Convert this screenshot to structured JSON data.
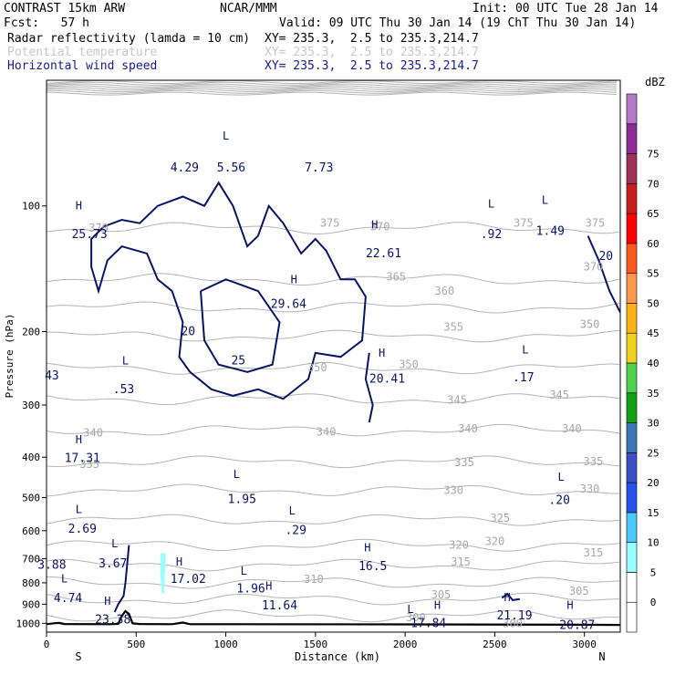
{
  "header": {
    "title": "CONTRAST 15km ARW",
    "source": "NCAR/MMM",
    "init": "Init: 00 UTC Tue 28 Jan 14",
    "fcst": "Fcst:   57 h",
    "valid": "Valid: 09 UTC Thu 30 Jan 14 (19 ChT Thu 30 Jan 14)",
    "fields": [
      {
        "name": "Radar reflectivity (lamda = 10 cm)",
        "xy": "XY= 235.3,  2.5 to 235.3,214.7",
        "style": "black"
      },
      {
        "name": "Potential temperature",
        "xy": "XY= 235.3,  2.5 to 235.3,214.7",
        "style": "gray"
      },
      {
        "name": "Horizontal wind speed",
        "xy": "XY= 235.3,  2.5 to 235.3,214.7",
        "style": "navy"
      }
    ]
  },
  "colorbar": {
    "unit": "dBZ",
    "levels": [
      "-",
      "0",
      "5",
      "10",
      "15",
      "20",
      "25",
      "30",
      "35",
      "40",
      "45",
      "50",
      "55",
      "60",
      "65",
      "70",
      "75"
    ],
    "colors": [
      "#ffffff",
      "#ffffff",
      "#9affff",
      "#4cc8ff",
      "#2850f0",
      "#3c50c8",
      "#3c78b4",
      "#14a014",
      "#50d250",
      "#f0d21e",
      "#ffb414",
      "#ff9650",
      "#ff5a1e",
      "#ff0000",
      "#c81e1e",
      "#a0325a",
      "#8c2d96",
      "#b478c8"
    ]
  },
  "chart_data": {
    "type": "contour",
    "title": "",
    "xlabel": "Distance (km)",
    "ylabel": "Pressure (hPa)",
    "xlim": [
      0,
      3200
    ],
    "ylim": [
      1050,
      50
    ],
    "y_scale": "log",
    "x_ticks": [
      "0",
      "500",
      "1000",
      "1500",
      "2000",
      "2500",
      "3000"
    ],
    "x_tick_values": [
      0,
      500,
      1000,
      1500,
      2000,
      2500,
      3000
    ],
    "y_ticks": [
      "100",
      "200",
      "300",
      "400",
      "500",
      "600",
      "700",
      "800",
      "900",
      "1000"
    ],
    "y_tick_values": [
      100,
      200,
      300,
      400,
      500,
      600,
      700,
      800,
      900,
      1000
    ],
    "endpoint_labels": {
      "left": "S",
      "right": "N"
    },
    "theta_contours": [
      {
        "label": "370",
        "p": 113
      },
      {
        "label": "365",
        "p": 150
      },
      {
        "label": "360",
        "p": 175
      },
      {
        "label": "355",
        "p": 205
      },
      {
        "label": "350",
        "p": 245
      },
      {
        "label": "345",
        "p": 290
      },
      {
        "label": "340",
        "p": 345
      },
      {
        "label": "335",
        "p": 410
      },
      {
        "label": "330",
        "p": 480
      },
      {
        "label": "325",
        "p": 565
      },
      {
        "label": "320",
        "p": 650
      },
      {
        "label": "315",
        "p": 725
      },
      {
        "label": "310",
        "p": 800
      },
      {
        "label": "305",
        "p": 875
      },
      {
        "label": "300",
        "p": 960
      }
    ],
    "theta_labels": [
      {
        "text": "370",
        "x": 290,
        "p": 113
      },
      {
        "text": "375",
        "x": 1580,
        "p": 110
      },
      {
        "text": "370",
        "x": 1860,
        "p": 112
      },
      {
        "text": "375",
        "x": 2660,
        "p": 110
      },
      {
        "text": "375",
        "x": 3060,
        "p": 110
      },
      {
        "text": "370",
        "x": 3050,
        "p": 140
      },
      {
        "text": "365",
        "x": 1950,
        "p": 148
      },
      {
        "text": "360",
        "x": 2220,
        "p": 160
      },
      {
        "text": "355",
        "x": 2270,
        "p": 195
      },
      {
        "text": "350",
        "x": 3030,
        "p": 192
      },
      {
        "text": "350",
        "x": 2020,
        "p": 240
      },
      {
        "text": "350",
        "x": 1510,
        "p": 244
      },
      {
        "text": "345",
        "x": 2860,
        "p": 284
      },
      {
        "text": "345",
        "x": 2290,
        "p": 292
      },
      {
        "text": "340",
        "x": 260,
        "p": 350
      },
      {
        "text": "340",
        "x": 1560,
        "p": 348
      },
      {
        "text": "340",
        "x": 2350,
        "p": 342
      },
      {
        "text": "340",
        "x": 2930,
        "p": 342
      },
      {
        "text": "335",
        "x": 240,
        "p": 416
      },
      {
        "text": "335",
        "x": 2330,
        "p": 412
      },
      {
        "text": "335",
        "x": 3050,
        "p": 410
      },
      {
        "text": "330",
        "x": 2270,
        "p": 480
      },
      {
        "text": "330",
        "x": 3030,
        "p": 477
      },
      {
        "text": "325",
        "x": 2530,
        "p": 560
      },
      {
        "text": "320",
        "x": 2300,
        "p": 650
      },
      {
        "text": "320",
        "x": 2500,
        "p": 637
      },
      {
        "text": "315",
        "x": 2310,
        "p": 712
      },
      {
        "text": "315",
        "x": 3050,
        "p": 678
      },
      {
        "text": "310",
        "x": 1490,
        "p": 784
      },
      {
        "text": "305",
        "x": 2200,
        "p": 855
      },
      {
        "text": "305",
        "x": 2970,
        "p": 838
      },
      {
        "text": "300",
        "x": 2060,
        "p": 968
      },
      {
        "text": "300",
        "x": 2600,
        "p": 1000
      }
    ],
    "wind_labels": [
      {
        "text": "4.29",
        "x": 770,
        "p": 81
      },
      {
        "text": "5.56",
        "x": 1030,
        "p": 81
      },
      {
        "text": "7.73",
        "x": 1520,
        "p": 81
      },
      {
        "text": "25.73",
        "x": 240,
        "p": 117
      },
      {
        "text": "22.61",
        "x": 1880,
        "p": 130
      },
      {
        "text": "29.64",
        "x": 1350,
        "p": 172
      },
      {
        "text": "20",
        "x": 790,
        "p": 200
      },
      {
        "text": "25",
        "x": 1070,
        "p": 235
      },
      {
        "text": "20.41",
        "x": 1900,
        "p": 260
      },
      {
        "text": "43",
        "x": 30,
        "p": 255
      },
      {
        "text": ".53",
        "x": 430,
        "p": 275
      },
      {
        "text": ".92",
        "x": 2480,
        "p": 117
      },
      {
        "text": "1.49",
        "x": 2810,
        "p": 115
      },
      {
        "text": "20",
        "x": 3120,
        "p": 132
      },
      {
        "text": ".17",
        "x": 2660,
        "p": 258
      },
      {
        "text": "17.31",
        "x": 200,
        "p": 403
      },
      {
        "text": "1.95",
        "x": 1090,
        "p": 505
      },
      {
        "text": ".20",
        "x": 2860,
        "p": 508
      },
      {
        "text": "2.69",
        "x": 200,
        "p": 594
      },
      {
        "text": ".29",
        "x": 1390,
        "p": 599
      },
      {
        "text": "3.88",
        "x": 30,
        "p": 725
      },
      {
        "text": "3.67",
        "x": 370,
        "p": 720
      },
      {
        "text": "16.5",
        "x": 1820,
        "p": 730
      },
      {
        "text": "17.02",
        "x": 790,
        "p": 785
      },
      {
        "text": "1.96",
        "x": 1140,
        "p": 826
      },
      {
        "text": "4.74",
        "x": 120,
        "p": 872
      },
      {
        "text": "11.64",
        "x": 1300,
        "p": 907
      },
      {
        "text": "23.38",
        "x": 370,
        "p": 980
      },
      {
        "text": "21.19",
        "x": 2610,
        "p": 960
      },
      {
        "text": "17.84",
        "x": 2130,
        "p": 1000
      },
      {
        "text": "20.87",
        "x": 2960,
        "p": 1010
      }
    ],
    "extrema": [
      {
        "text": "H",
        "x": 180,
        "p": 100
      },
      {
        "text": "L",
        "x": 1000,
        "p": 68
      },
      {
        "text": "H",
        "x": 1830,
        "p": 111
      },
      {
        "text": "H",
        "x": 1380,
        "p": 150
      },
      {
        "text": "H",
        "x": 1870,
        "p": 225
      },
      {
        "text": "L",
        "x": 440,
        "p": 235
      },
      {
        "text": "L",
        "x": 2480,
        "p": 99
      },
      {
        "text": "L",
        "x": 2780,
        "p": 97
      },
      {
        "text": "L",
        "x": 2670,
        "p": 221
      },
      {
        "text": "H",
        "x": 180,
        "p": 363
      },
      {
        "text": "L",
        "x": 1060,
        "p": 440
      },
      {
        "text": "L",
        "x": 2870,
        "p": 446
      },
      {
        "text": "L",
        "x": 180,
        "p": 533
      },
      {
        "text": "L",
        "x": 1370,
        "p": 538
      },
      {
        "text": "L",
        "x": 380,
        "p": 645
      },
      {
        "text": "H",
        "x": 1790,
        "p": 660
      },
      {
        "text": "H",
        "x": 740,
        "p": 712
      },
      {
        "text": "L",
        "x": 1100,
        "p": 750
      },
      {
        "text": "L",
        "x": 100,
        "p": 783
      },
      {
        "text": "H",
        "x": 1240,
        "p": 815
      },
      {
        "text": "H",
        "x": 340,
        "p": 885
      },
      {
        "text": "H",
        "x": 2570,
        "p": 867
      },
      {
        "text": "H",
        "x": 2180,
        "p": 905
      },
      {
        "text": "L",
        "x": 2030,
        "p": 925
      },
      {
        "text": "H",
        "x": 2920,
        "p": 905
      }
    ],
    "reflectivity_cells": [
      {
        "dbz": 5,
        "x_center": 650,
        "p_top": 680,
        "p_bottom": 850
      }
    ],
    "terrain": {
      "x": [
        0,
        40,
        70,
        100,
        350,
        400,
        420,
        440,
        460,
        480,
        520,
        700,
        760,
        800,
        1000,
        2000,
        3000,
        3200
      ],
      "p": [
        1005,
        1000,
        998,
        1004,
        1005,
        1003,
        960,
        935,
        950,
        1000,
        1004,
        1005,
        996,
        1005,
        1005,
        1006,
        1008,
        1009
      ]
    }
  }
}
